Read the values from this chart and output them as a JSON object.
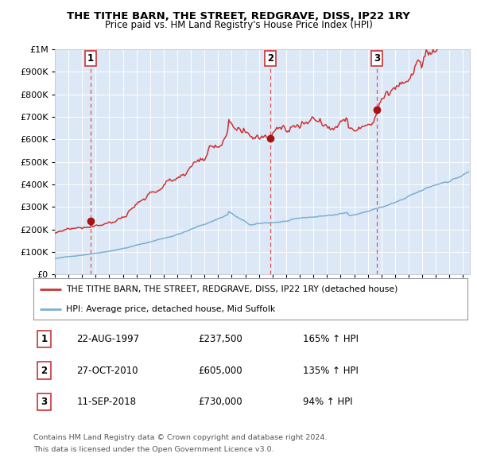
{
  "title": "THE TITHE BARN, THE STREET, REDGRAVE, DISS, IP22 1RY",
  "subtitle": "Price paid vs. HM Land Registry's House Price Index (HPI)",
  "legend_line1": "THE TITHE BARN, THE STREET, REDGRAVE, DISS, IP22 1RY (detached house)",
  "legend_line2": "HPI: Average price, detached house, Mid Suffolk",
  "footer1": "Contains HM Land Registry data © Crown copyright and database right 2024.",
  "footer2": "This data is licensed under the Open Government Licence v3.0.",
  "purchases": [
    {
      "num": 1,
      "date": "22-AUG-1997",
      "price": 237500,
      "price_str": "£237,500",
      "pct": "165%",
      "dir": "↑"
    },
    {
      "num": 2,
      "date": "27-OCT-2010",
      "price": 605000,
      "price_str": "£605,000",
      "pct": "135%",
      "dir": "↑"
    },
    {
      "num": 3,
      "date": "11-SEP-2018",
      "price": 730000,
      "price_str": "£730,000",
      "pct": "94%",
      "dir": "↑"
    }
  ],
  "purchase_years": [
    1997.64,
    2010.82,
    2018.69
  ],
  "hpi_color": "#7bafd4",
  "price_color": "#cc3333",
  "dot_color": "#aa1111",
  "vline_color_grey": "#bbbbbb",
  "vline_color_red": "#dd4444",
  "plot_bg": "#dce8f5",
  "grid_color": "#ffffff",
  "ylim": [
    0,
    1000000
  ],
  "xlim_start": 1995.0,
  "xlim_end": 2025.5,
  "figsize": [
    6.0,
    5.9
  ],
  "dpi": 100
}
